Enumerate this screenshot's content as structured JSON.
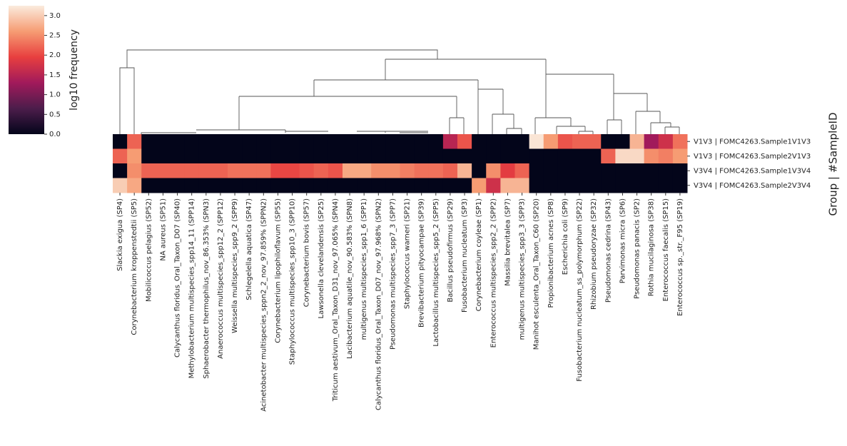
{
  "chart_data": {
    "type": "heatmap",
    "ylabel": "Group | #SampleID",
    "colorbar_label": "log10 frequency",
    "zlim": [
      0,
      3.25
    ],
    "zticks": [
      {
        "value": 0,
        "label": "0.0"
      },
      {
        "value": 0.5,
        "label": "0.5"
      },
      {
        "value": 1,
        "label": "1.0"
      },
      {
        "value": 1.5,
        "label": "1.5"
      },
      {
        "value": 2,
        "label": "2.0"
      },
      {
        "value": 2.5,
        "label": "2.5"
      },
      {
        "value": 3,
        "label": "3.0"
      }
    ],
    "colormap": [
      "#03051a",
      "#4c1d4b",
      "#a11a5b",
      "#e83f3f",
      "#f69c73",
      "#faebdd"
    ],
    "rows": [
      "V1V3 | FOMC4263.Sample1V1V3",
      "V1V3 | FOMC4263.Sample2V1V3",
      "V3V4 | FOMC4263.Sample1V3V4",
      "V3V4 | FOMC4263.Sample2V3V4"
    ],
    "columns": [
      "Slackia exigua (SP4)",
      "Corynebacterium kroppenstedtii (SP5)",
      "Mobilicoccus pelagius (SP52)",
      "NA aureus (SP51)",
      "Calycanthus floridus_Oral_Taxon_D07 (SP40)",
      "Methylobacterium multispecies_spp14_11 (SPP14)",
      "Sphaerobacter thermophilus_nov_86.353% (SPN3)",
      "Anaerococcus multispecies_spp12_2 (SPP12)",
      "Weissella multispecies_spp9_2 (SPP9)",
      "Schlegelella aquatica (SP47)",
      "Acinetobacter multispecies_sppn2_2_nov_97.859% (SPPN2)",
      "Corynebacterium lipophiloflavum (SP55)",
      "Staphylococcus multispecies_spp10_3 (SPP10)",
      "Corynebacterium bovis (SP57)",
      "Lawsonella clevelandensis (SP25)",
      "Triticum aestivum_Oral_Taxon_D31_nov_97.065% (SPN4)",
      "Lacibacterium aquatile_nov_90.583% (SPN8)",
      "multigenus multispecies_spp1_6 (SPP1)",
      "Calycanthus floridus_Oral_Taxon_D07_nov_97.968% (SPN2)",
      "Pseudomonas multispecies_spp7_3 (SPP7)",
      "Staphylococcus warneri (SP21)",
      "Brevibacterium pityocampae (SP39)",
      "Lactobacillus multispecies_spp5_2 (SPP5)",
      "Bacillus pseudofirmus (SP29)",
      "Fusobacterium nucleatum (SP3)",
      "Corynebacterium coyleae (SP1)",
      "Enterococcus multispecies_spp2_2 (SPP2)",
      "Massilia brevitalea (SP7)",
      "multigenus multispecies_spp3_3 (SPP3)",
      "Manihot esculenta_Oral_Taxon_C60 (SP20)",
      "Propionibacterium acnes (SP8)",
      "Escherichia coli (SP9)",
      "Fusobacterium nucleatum_ss_polymorphum (SP22)",
      "Rhizobium pseudoryzae (SP32)",
      "Pseudomonas cedrina (SP43)",
      "Parvimonas micra (SP6)",
      "Pseudomonas panacis (SP2)",
      "Rothia mucilaginosa (SP38)",
      "Enterococcus faecalis (SP15)",
      "Enterococcus sp._str._F95 (SP19)"
    ],
    "values": [
      [
        0,
        2.2,
        0,
        0,
        0,
        0,
        0,
        0,
        0,
        0,
        0,
        0,
        0,
        0,
        0,
        0,
        0,
        0,
        0,
        0,
        0,
        0,
        0,
        1.5,
        2.1,
        0,
        0,
        0,
        0,
        3.2,
        2.6,
        2.1,
        2.2,
        2.2,
        0,
        0,
        2.8,
        1.3,
        1.7,
        2.3
      ],
      [
        2.2,
        2.6,
        0,
        0,
        0,
        0,
        0,
        0,
        0,
        0,
        0,
        0,
        0,
        0,
        0,
        0,
        0,
        0,
        0,
        0,
        0,
        0,
        0,
        0,
        0,
        0,
        0,
        0,
        0,
        0,
        0,
        0,
        0,
        0,
        2.2,
        3.1,
        3.1,
        2.5,
        2.4,
        2.6
      ],
      [
        0,
        2.5,
        2.2,
        2.2,
        2.2,
        2.2,
        2.2,
        2.2,
        2.3,
        2.3,
        2.3,
        2.0,
        2.0,
        2.1,
        2.2,
        2.1,
        2.7,
        2.7,
        2.5,
        2.5,
        2.4,
        2.3,
        2.3,
        2.2,
        2.8,
        0,
        2.5,
        1.9,
        2.2,
        0,
        0,
        0,
        0,
        0,
        0,
        0,
        0,
        0,
        0,
        0
      ],
      [
        3.0,
        2.7,
        0,
        0,
        0,
        0,
        0,
        0,
        0,
        0,
        0,
        0,
        0,
        0,
        0,
        0,
        0,
        0,
        0,
        0,
        0,
        0,
        0,
        0,
        0,
        2.6,
        1.7,
        2.8,
        2.8,
        0,
        0,
        0,
        0,
        0,
        0,
        0,
        0,
        0,
        0,
        0
      ]
    ]
  }
}
